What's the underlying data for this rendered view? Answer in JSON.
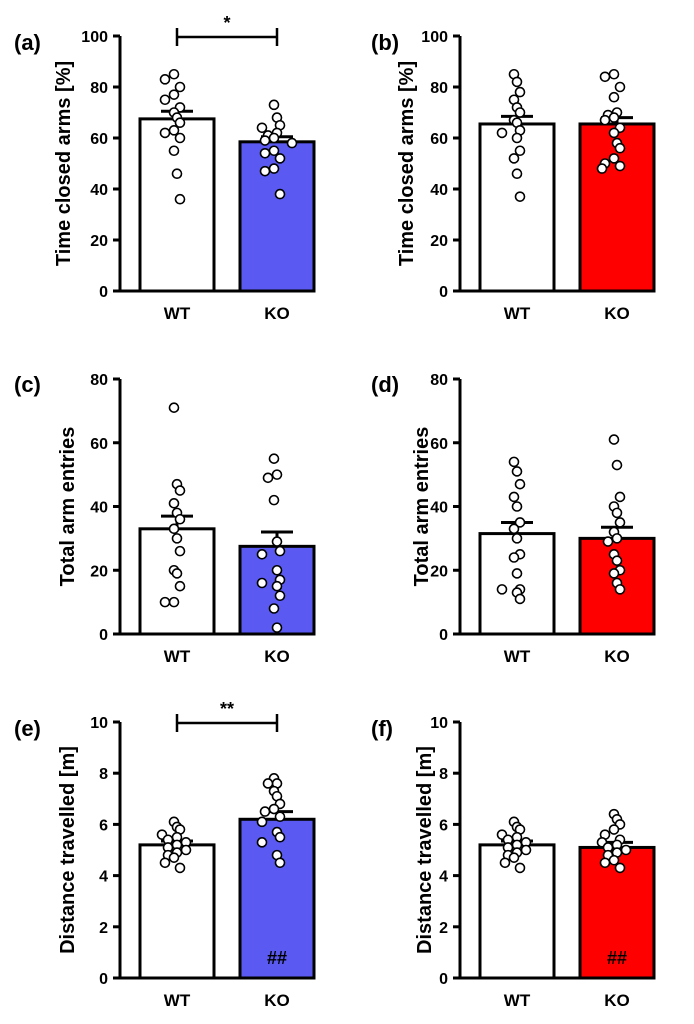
{
  "chart_data": [
    {
      "panel_label": "(a)",
      "type": "bar",
      "ylabel": "Time closed arms [%]",
      "ylim": [
        0,
        100
      ],
      "yticks": [
        0,
        20,
        40,
        60,
        80,
        100
      ],
      "categories": [
        "WT",
        "KO"
      ],
      "values": [
        67.5,
        58.5
      ],
      "errors": [
        3.0,
        2.0
      ],
      "colors": [
        "#ffffff",
        "#5a5af2"
      ],
      "points": [
        [
          85,
          83,
          80,
          77,
          75,
          72,
          70,
          68,
          66,
          63,
          62,
          60,
          55,
          46,
          36
        ],
        [
          73,
          68,
          65,
          64,
          62,
          61,
          60,
          59,
          58,
          55,
          54,
          52,
          48,
          47,
          38
        ]
      ],
      "significance": {
        "from": 0,
        "to": 1,
        "label": "*"
      },
      "bar_annotations": [
        "",
        ""
      ]
    },
    {
      "panel_label": "(b)",
      "type": "bar",
      "ylabel": "Time closed arms [%]",
      "ylim": [
        0,
        100
      ],
      "yticks": [
        0,
        20,
        40,
        60,
        80,
        100
      ],
      "categories": [
        "WT",
        "KO"
      ],
      "values": [
        65.5,
        65.5
      ],
      "errors": [
        3.0,
        2.5
      ],
      "colors": [
        "#ffffff",
        "#ff0000"
      ],
      "points": [
        [
          85,
          82,
          78,
          75,
          72,
          70,
          67,
          66,
          63,
          62,
          60,
          55,
          52,
          46,
          37
        ],
        [
          85,
          84,
          80,
          76,
          70,
          69,
          68,
          67,
          64,
          62,
          58,
          56,
          52,
          50,
          49,
          48
        ]
      ],
      "significance": null,
      "bar_annotations": [
        "",
        ""
      ]
    },
    {
      "panel_label": "(c)",
      "type": "bar",
      "ylabel": "Total arm entries",
      "ylim": [
        0,
        80
      ],
      "yticks": [
        0,
        20,
        40,
        60,
        80
      ],
      "categories": [
        "WT",
        "KO"
      ],
      "values": [
        33,
        27.5
      ],
      "errors": [
        4.0,
        4.5
      ],
      "colors": [
        "#ffffff",
        "#5a5af2"
      ],
      "points": [
        [
          71,
          47,
          45,
          41,
          38,
          36,
          33,
          30,
          26,
          20,
          19,
          15,
          10,
          10
        ],
        [
          55,
          50,
          49,
          42,
          29,
          26,
          25,
          20,
          17,
          16,
          15,
          12,
          8,
          2
        ]
      ],
      "significance": null,
      "bar_annotations": [
        "",
        ""
      ]
    },
    {
      "panel_label": "(d)",
      "type": "bar",
      "ylabel": "Total arm entries",
      "ylim": [
        0,
        80
      ],
      "yticks": [
        0,
        20,
        40,
        60,
        80
      ],
      "categories": [
        "WT",
        "KO"
      ],
      "values": [
        31.5,
        30
      ],
      "errors": [
        3.5,
        3.5
      ],
      "colors": [
        "#ffffff",
        "#ff0000"
      ],
      "points": [
        [
          54,
          51,
          47,
          43,
          40,
          35,
          33,
          30,
          25,
          24,
          19,
          14,
          14,
          13,
          11
        ],
        [
          61,
          53,
          43,
          40,
          38,
          35,
          32,
          30,
          29,
          25,
          23,
          20,
          19,
          16,
          14
        ]
      ],
      "significance": null,
      "bar_annotations": [
        "",
        ""
      ]
    },
    {
      "panel_label": "(e)",
      "type": "bar",
      "ylabel": "Distance travelled [m]",
      "ylim": [
        0,
        10
      ],
      "yticks": [
        0,
        2,
        4,
        6,
        8,
        10
      ],
      "categories": [
        "WT",
        "KO"
      ],
      "values": [
        5.2,
        6.2
      ],
      "errors": [
        0.15,
        0.3
      ],
      "colors": [
        "#ffffff",
        "#5a5af2"
      ],
      "points": [
        [
          6.1,
          5.9,
          5.8,
          5.6,
          5.5,
          5.4,
          5.3,
          5.2,
          5.1,
          5.0,
          4.9,
          4.8,
          4.7,
          4.5,
          4.3
        ],
        [
          7.8,
          7.6,
          7.6,
          7.3,
          7.1,
          6.8,
          6.6,
          6.5,
          6.3,
          6.1,
          5.7,
          5.5,
          5.3,
          4.8,
          4.5
        ]
      ],
      "significance": {
        "from": 0,
        "to": 1,
        "label": "**"
      },
      "bar_annotations": [
        "",
        "##"
      ]
    },
    {
      "panel_label": "(f)",
      "type": "bar",
      "ylabel": "Distance travelled [m]",
      "ylim": [
        0,
        10
      ],
      "yticks": [
        0,
        2,
        4,
        6,
        8,
        10
      ],
      "categories": [
        "WT",
        "KO"
      ],
      "values": [
        5.2,
        5.1
      ],
      "errors": [
        0.15,
        0.2
      ],
      "colors": [
        "#ffffff",
        "#ff0000"
      ],
      "points": [
        [
          6.1,
          5.9,
          5.8,
          5.6,
          5.5,
          5.4,
          5.3,
          5.2,
          5.1,
          5.0,
          4.9,
          4.8,
          4.7,
          4.5,
          4.3
        ],
        [
          6.4,
          6.2,
          6.0,
          5.8,
          5.6,
          5.4,
          5.3,
          5.2,
          5.1,
          5.0,
          4.9,
          4.8,
          4.6,
          4.5,
          4.3
        ]
      ],
      "significance": null,
      "bar_annotations": [
        "",
        "##"
      ]
    }
  ]
}
